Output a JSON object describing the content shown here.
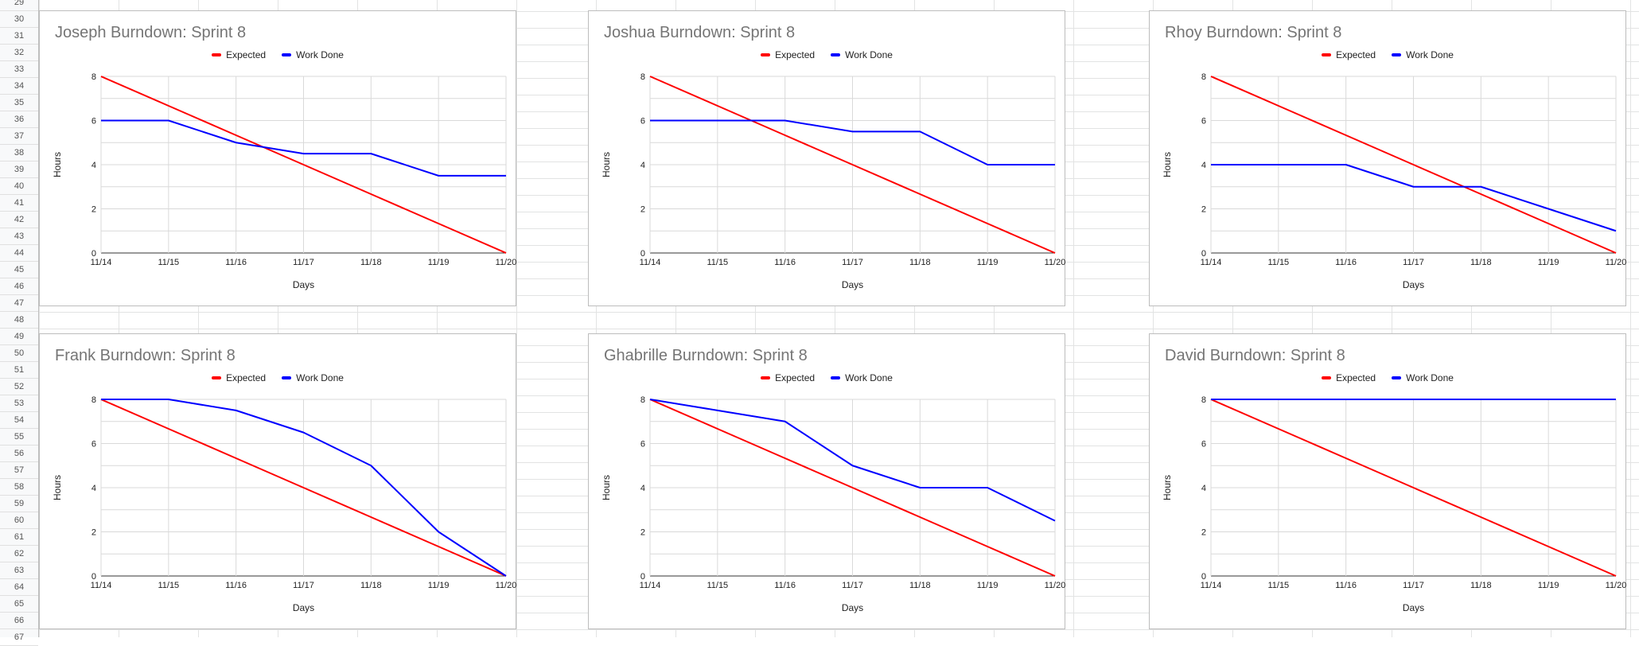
{
  "sheet": {
    "row_numbers": [
      "29",
      "30",
      "31",
      "32",
      "33",
      "34",
      "35",
      "36",
      "37",
      "38",
      "39",
      "40",
      "41",
      "42",
      "43",
      "44",
      "45",
      "46",
      "47",
      "48",
      "49",
      "50",
      "51",
      "52",
      "53",
      "54",
      "55",
      "56",
      "57",
      "58",
      "59",
      "60",
      "61",
      "62",
      "63",
      "64",
      "65",
      "66",
      "67"
    ]
  },
  "colors": {
    "expected": "#ff0000",
    "work_done": "#0000ff",
    "grid": "#d9d9d9"
  },
  "legend": {
    "expected": "Expected",
    "work_done": "Work Done"
  },
  "chart_data": [
    {
      "type": "line",
      "title": "Joseph Burndown: Sprint 8",
      "xlabel": "Days",
      "ylabel": "Hours",
      "categories": [
        "11/14",
        "11/15",
        "11/16",
        "11/17",
        "11/18",
        "11/19",
        "11/20"
      ],
      "yticks": [
        "0",
        "2",
        "4",
        "6",
        "8"
      ],
      "ylim": [
        0,
        8
      ],
      "legend_position": "top",
      "series": [
        {
          "name": "Expected",
          "values": [
            8,
            6.667,
            5.333,
            4,
            2.667,
            1.333,
            0
          ]
        },
        {
          "name": "Work Done",
          "values": [
            6,
            6,
            5,
            4.5,
            4.5,
            3.5,
            3.5
          ]
        }
      ]
    },
    {
      "type": "line",
      "title": "Joshua Burndown: Sprint 8",
      "xlabel": "Days",
      "ylabel": "Hours",
      "categories": [
        "11/14",
        "11/15",
        "11/16",
        "11/17",
        "11/18",
        "11/19",
        "11/20"
      ],
      "yticks": [
        "0",
        "2",
        "4",
        "6",
        "8"
      ],
      "ylim": [
        0,
        8
      ],
      "legend_position": "top",
      "series": [
        {
          "name": "Expected",
          "values": [
            8,
            6.667,
            5.333,
            4,
            2.667,
            1.333,
            0
          ]
        },
        {
          "name": "Work Done",
          "values": [
            6,
            6,
            6,
            5.5,
            5.5,
            4,
            4
          ]
        }
      ]
    },
    {
      "type": "line",
      "title": "Rhoy Burndown: Sprint 8",
      "xlabel": "Days",
      "ylabel": "Hours",
      "categories": [
        "11/14",
        "11/15",
        "11/16",
        "11/17",
        "11/18",
        "11/19",
        "11/20"
      ],
      "yticks": [
        "0",
        "2",
        "4",
        "6",
        "8"
      ],
      "ylim": [
        0,
        8
      ],
      "legend_position": "top",
      "series": [
        {
          "name": "Expected",
          "values": [
            8,
            6.667,
            5.333,
            4,
            2.667,
            1.333,
            0
          ]
        },
        {
          "name": "Work Done",
          "values": [
            4,
            4,
            4,
            3,
            3,
            2,
            1
          ]
        }
      ]
    },
    {
      "type": "line",
      "title": "Frank Burndown: Sprint 8",
      "xlabel": "Days",
      "ylabel": "Hours",
      "categories": [
        "11/14",
        "11/15",
        "11/16",
        "11/17",
        "11/18",
        "11/19",
        "11/20"
      ],
      "yticks": [
        "0",
        "2",
        "4",
        "6",
        "8"
      ],
      "ylim": [
        0,
        8
      ],
      "legend_position": "top",
      "series": [
        {
          "name": "Expected",
          "values": [
            8,
            6.667,
            5.333,
            4,
            2.667,
            1.333,
            0
          ]
        },
        {
          "name": "Work Done",
          "values": [
            8,
            8,
            7.5,
            6.5,
            5,
            2,
            0
          ]
        }
      ]
    },
    {
      "type": "line",
      "title": "Ghabrille Burndown: Sprint 8",
      "xlabel": "Days",
      "ylabel": "Hours",
      "categories": [
        "11/14",
        "11/15",
        "11/16",
        "11/17",
        "11/18",
        "11/19",
        "11/20"
      ],
      "yticks": [
        "0",
        "2",
        "4",
        "6",
        "8"
      ],
      "ylim": [
        0,
        8
      ],
      "legend_position": "top",
      "series": [
        {
          "name": "Expected",
          "values": [
            8,
            6.667,
            5.333,
            4,
            2.667,
            1.333,
            0
          ]
        },
        {
          "name": "Work Done",
          "values": [
            8,
            7.5,
            7,
            5,
            4,
            4,
            2.5
          ]
        }
      ]
    },
    {
      "type": "line",
      "title": "David Burndown: Sprint 8",
      "xlabel": "Days",
      "ylabel": "Hours",
      "categories": [
        "11/14",
        "11/15",
        "11/16",
        "11/17",
        "11/18",
        "11/19",
        "11/20"
      ],
      "yticks": [
        "0",
        "2",
        "4",
        "6",
        "8"
      ],
      "ylim": [
        0,
        8
      ],
      "legend_position": "top",
      "series": [
        {
          "name": "Expected",
          "values": [
            8,
            6.667,
            5.333,
            4,
            2.667,
            1.333,
            0
          ]
        },
        {
          "name": "Work Done",
          "values": [
            8,
            8,
            8,
            8,
            8,
            8,
            8
          ]
        }
      ]
    }
  ]
}
